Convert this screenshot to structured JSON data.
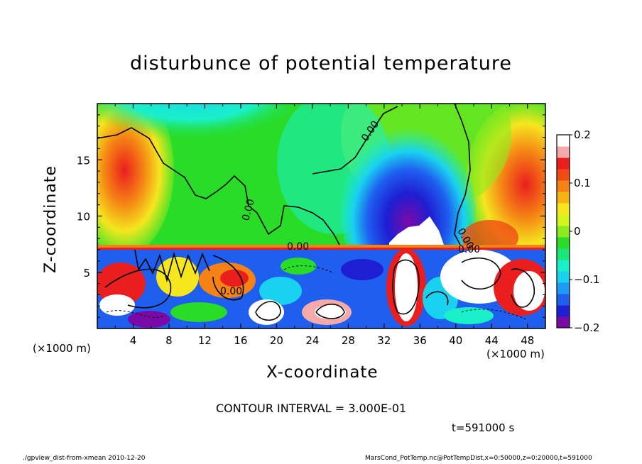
{
  "chart_data": {
    "type": "heatmap",
    "title": "disturbunce of potential temperature",
    "xlabel": "X-coordinate",
    "ylabel": "Z-coordinate",
    "x_unit_left": "(×1000 m)",
    "x_unit_right": "(×1000 m)",
    "xlim": [
      0,
      50
    ],
    "ylim": [
      0,
      20
    ],
    "x_ticks": [
      "4",
      "8",
      "12",
      "16",
      "20",
      "24",
      "28",
      "32",
      "36",
      "40",
      "44",
      "48"
    ],
    "x_tick_values": [
      4,
      8,
      12,
      16,
      20,
      24,
      28,
      32,
      36,
      40,
      44,
      48
    ],
    "y_ticks": [
      "5",
      "10",
      "15"
    ],
    "y_tick_values": [
      5,
      10,
      15
    ],
    "colorbar": {
      "range": [
        -0.2,
        0.2
      ],
      "tick_labels": [
        "0.2",
        "0.1",
        "0",
        "−0.1",
        "−0.2"
      ],
      "tick_values": [
        0.2,
        0.1,
        0,
        -0.1,
        -0.2
      ],
      "colors": [
        "#7a0aa8",
        "#1e1ed2",
        "#1e5ff0",
        "#1e9bf5",
        "#19d2f0",
        "#19f0c8",
        "#19e678",
        "#28dc28",
        "#8ceb1e",
        "#d2f51e",
        "#f5e61e",
        "#f5b414",
        "#f58214",
        "#f04b14",
        "#eb1e1e",
        "#f5aaaa",
        "#ffffff"
      ]
    },
    "contour_labels": [
      "0.00",
      "0.00",
      "0.00",
      "0.00",
      "0.00",
      "0.00"
    ],
    "contour_interval_text": "CONTOUR INTERVAL = 3.000E-01",
    "time_text": "t=591000 s"
  },
  "footer": {
    "left": "./gpview_dist-from-xmean  2010-12-20",
    "right": "MarsCond_PotTemp.nc@PotTempDist,x=0:50000,z=0:20000,t=591000"
  }
}
